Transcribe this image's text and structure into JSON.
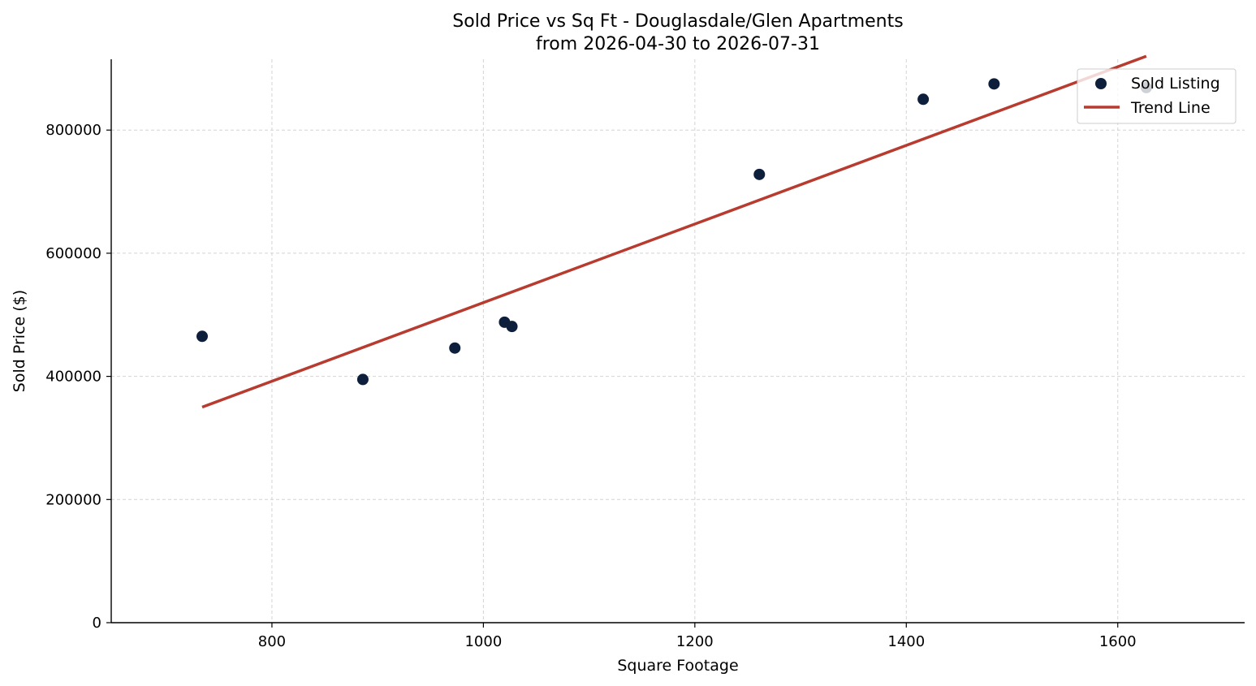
{
  "chart_data": {
    "type": "scatter",
    "title": "Sold Price vs Sq Ft - Douglasdale/Glen Apartments",
    "subtitle": "from 2026-04-30 to 2026-07-31",
    "xlabel": "Square Footage",
    "ylabel": "Sold Price ($)",
    "xlim": [
      648,
      1720
    ],
    "ylim": [
      0,
      915000
    ],
    "xticks": [
      800,
      1000,
      1200,
      1400,
      1600
    ],
    "yticks": [
      0,
      200000,
      400000,
      600000,
      800000
    ],
    "grid": true,
    "legend_position": "top-right",
    "colors": {
      "points": "#0d1f3a",
      "trend": "#b83b30",
      "grid": "#d4d4d4"
    },
    "series": [
      {
        "name": "Sold Listing",
        "type": "scatter",
        "x": [
          734,
          886,
          973,
          1020,
          1027,
          1261,
          1416,
          1483,
          1627
        ],
        "y": [
          465000,
          395000,
          446000,
          488000,
          481000,
          728000,
          850000,
          875000,
          869000
        ]
      },
      {
        "name": "Trend Line",
        "type": "line",
        "x": [
          734,
          1627
        ],
        "y": [
          350000,
          920000
        ]
      }
    ]
  }
}
